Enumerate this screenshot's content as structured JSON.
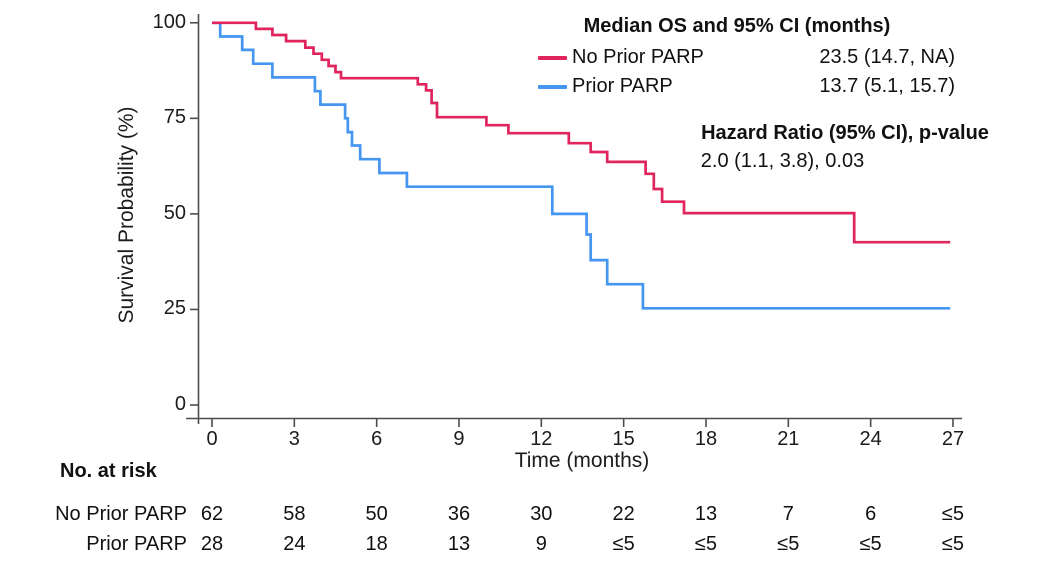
{
  "chart_data": {
    "type": "line",
    "subtype": "kaplan-meier-step",
    "title": "",
    "xlabel": "Time (months)",
    "ylabel": "Survival Probability (%)",
    "xlim": [
      0,
      27
    ],
    "ylim": [
      0,
      100
    ],
    "x_ticks": [
      0,
      3,
      6,
      9,
      12,
      15,
      18,
      21,
      24,
      27
    ],
    "y_ticks": [
      0,
      25,
      50,
      75,
      100
    ],
    "grid": false,
    "legend_position": "top-right",
    "series": [
      {
        "name": "No Prior PARP",
        "color": "#E0245E",
        "points": [
          [
            0,
            100
          ],
          [
            1.6,
            100
          ],
          [
            1.6,
            98.4
          ],
          [
            2.2,
            98.4
          ],
          [
            2.2,
            96.8
          ],
          [
            2.7,
            96.8
          ],
          [
            2.7,
            95.2
          ],
          [
            3.4,
            95.2
          ],
          [
            3.4,
            93.5
          ],
          [
            3.7,
            93.5
          ],
          [
            3.7,
            91.9
          ],
          [
            4.0,
            91.9
          ],
          [
            4.0,
            90.3
          ],
          [
            4.25,
            90.3
          ],
          [
            4.25,
            88.7
          ],
          [
            4.5,
            88.7
          ],
          [
            4.5,
            87.1
          ],
          [
            4.7,
            87.1
          ],
          [
            4.7,
            85.5
          ],
          [
            7.5,
            85.5
          ],
          [
            7.5,
            83.9
          ],
          [
            7.8,
            83.9
          ],
          [
            7.8,
            82.3
          ],
          [
            8.0,
            82.3
          ],
          [
            8.0,
            79.0
          ],
          [
            8.2,
            79.0
          ],
          [
            8.2,
            75.3
          ],
          [
            10.0,
            75.3
          ],
          [
            10.0,
            73.2
          ],
          [
            10.8,
            73.2
          ],
          [
            10.8,
            71.1
          ],
          [
            13.0,
            71.1
          ],
          [
            13.0,
            68.5
          ],
          [
            13.8,
            68.5
          ],
          [
            13.8,
            66.2
          ],
          [
            14.4,
            66.2
          ],
          [
            14.4,
            63.6
          ],
          [
            15.8,
            63.6
          ],
          [
            15.8,
            60.5
          ],
          [
            16.1,
            60.5
          ],
          [
            16.1,
            56.5
          ],
          [
            16.4,
            56.5
          ],
          [
            16.4,
            53.2
          ],
          [
            17.2,
            53.2
          ],
          [
            17.2,
            50.2
          ],
          [
            23.4,
            50.2
          ],
          [
            23.4,
            42.6
          ],
          [
            26.9,
            42.6
          ]
        ]
      },
      {
        "name": "Prior PARP",
        "color": "#4596F0",
        "points": [
          [
            0,
            100
          ],
          [
            0.3,
            100
          ],
          [
            0.3,
            96.4
          ],
          [
            1.1,
            96.4
          ],
          [
            1.1,
            92.9
          ],
          [
            1.5,
            92.9
          ],
          [
            1.5,
            89.3
          ],
          [
            2.2,
            89.3
          ],
          [
            2.2,
            85.7
          ],
          [
            3.75,
            85.7
          ],
          [
            3.75,
            82.1
          ],
          [
            3.95,
            82.1
          ],
          [
            3.95,
            78.6
          ],
          [
            4.85,
            78.6
          ],
          [
            4.85,
            75.0
          ],
          [
            4.95,
            75.0
          ],
          [
            4.95,
            71.4
          ],
          [
            5.1,
            71.4
          ],
          [
            5.1,
            67.9
          ],
          [
            5.4,
            67.9
          ],
          [
            5.4,
            64.3
          ],
          [
            6.1,
            64.3
          ],
          [
            6.1,
            60.7
          ],
          [
            7.1,
            60.7
          ],
          [
            7.1,
            57.1
          ],
          [
            12.4,
            57.1
          ],
          [
            12.4,
            50.0
          ],
          [
            13.65,
            50.0
          ],
          [
            13.65,
            44.6
          ],
          [
            13.8,
            44.6
          ],
          [
            13.8,
            37.9
          ],
          [
            14.4,
            37.9
          ],
          [
            14.4,
            31.6
          ],
          [
            15.7,
            31.6
          ],
          [
            15.7,
            25.3
          ],
          [
            26.9,
            25.3
          ]
        ]
      }
    ]
  },
  "axes": {
    "x_title": "Time (months)",
    "y_title": "Survival Probability (%)"
  },
  "legend": {
    "title": "Median OS and 95% CI (months)",
    "rows": [
      {
        "label": "No Prior PARP",
        "value": "23.5 (14.7, NA)",
        "color": "#E0245E"
      },
      {
        "label": "Prior PARP",
        "value": "13.7 (5.1, 15.7)",
        "color": "#4596F0"
      }
    ]
  },
  "hazard": {
    "title": "Hazard Ratio (95% CI), p-value",
    "value": "2.0 (1.1, 3.8), 0.03"
  },
  "risk_table": {
    "header": "No. at risk",
    "times": [
      0,
      3,
      6,
      9,
      12,
      15,
      18,
      21,
      24,
      27
    ],
    "rows": [
      {
        "label": "No Prior PARP",
        "counts": [
          "62",
          "58",
          "50",
          "36",
          "30",
          "22",
          "13",
          "7",
          "6",
          "≤5"
        ]
      },
      {
        "label": "Prior PARP",
        "counts": [
          "28",
          "24",
          "18",
          "13",
          "9",
          "≤5",
          "≤5",
          "≤5",
          "≤5",
          "≤5"
        ]
      }
    ]
  },
  "colors": {
    "no_prior_parp": "#E0245E",
    "prior_parp": "#4596F0",
    "axis": "#4d4d4d",
    "text": "#1c1c1c"
  }
}
